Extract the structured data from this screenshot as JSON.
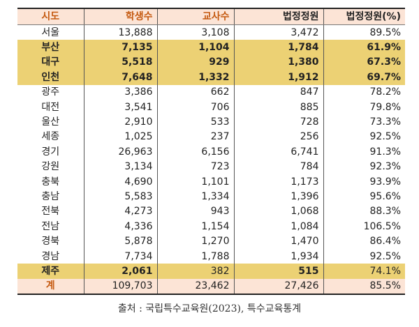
{
  "headers": [
    "시도",
    "학생수",
    "교사수",
    "법정정원",
    "법정정원(%)"
  ],
  "rows": [
    [
      "서울",
      "13,888",
      "3,108",
      "3,472",
      "89.5%"
    ],
    [
      "부산",
      "7,135",
      "1,104",
      "1,784",
      "61.9%"
    ],
    [
      "대구",
      "5,518",
      "929",
      "1,380",
      "67.3%"
    ],
    [
      "인천",
      "7,648",
      "1,332",
      "1,912",
      "69.7%"
    ],
    [
      "광주",
      "3,386",
      "662",
      "847",
      "78.2%"
    ],
    [
      "대전",
      "3,541",
      "706",
      "885",
      "79.8%"
    ],
    [
      "울산",
      "2,910",
      "533",
      "728",
      "73.3%"
    ],
    [
      "세종",
      "1,025",
      "237",
      "256",
      "92.5%"
    ],
    [
      "경기",
      "26,963",
      "6,156",
      "6,741",
      "91.3%"
    ],
    [
      "강원",
      "3,134",
      "723",
      "784",
      "92.3%"
    ],
    [
      "충북",
      "4,690",
      "1,101",
      "1,173",
      "93.9%"
    ],
    [
      "충남",
      "5,583",
      "1,334",
      "1,396",
      "95.6%"
    ],
    [
      "전북",
      "4,273",
      "943",
      "1,068",
      "88.3%"
    ],
    [
      "전남",
      "4,336",
      "1,154",
      "1,084",
      "106.5%"
    ],
    [
      "경북",
      "5,878",
      "1,270",
      "1,470",
      "86.4%"
    ],
    [
      "경남",
      "7,734",
      "1,788",
      "1,934",
      "92.5%"
    ],
    [
      "제주",
      "2,061",
      "382",
      "515",
      "74.1%"
    ]
  ],
  "total": [
    "계",
    "109,703",
    "23,462",
    "27,426",
    "85.5%"
  ],
  "caption": "출처 : 국립특수교육원(2023), 특수교육통계",
  "colors": {
    "highlight": "#ecd174",
    "header_bg": "#fce4d6",
    "accent": "#c55a11"
  }
}
